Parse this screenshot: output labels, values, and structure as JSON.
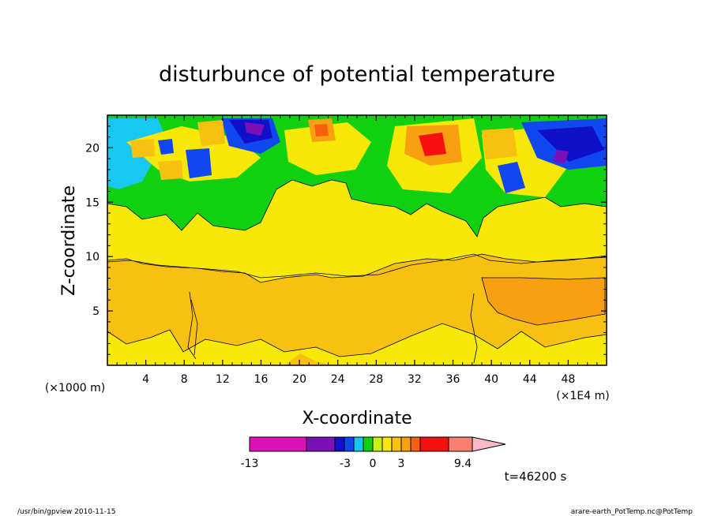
{
  "chart_data": {
    "type": "heatmap",
    "title": "disturbunce of potential temperature",
    "xlabel": "X-coordinate",
    "ylabel": "Z-coordinate",
    "x_units_left": "(×1000 m)",
    "x_units_right": "(×1E4 m)",
    "xlim": [
      0,
      52
    ],
    "ylim": [
      0,
      23
    ],
    "xticks": [
      "4",
      "8",
      "12",
      "16",
      "20",
      "24",
      "28",
      "32",
      "36",
      "40",
      "44",
      "48"
    ],
    "yticks": [
      "5",
      "10",
      "15",
      "20"
    ],
    "colorbar": {
      "tick_labels": [
        "-13",
        "-3",
        "0",
        "3",
        "9.4"
      ],
      "colors": [
        "#dd10b8",
        "#7a10b8",
        "#1010c8",
        "#1048f0",
        "#18c8f0",
        "#10d010",
        "#c8f010",
        "#f8e808",
        "#f8c010",
        "#f8a010",
        "#f86010",
        "#f81010",
        "#f88070",
        "#f8b8c8"
      ]
    },
    "time_label": "t=46200 s"
  },
  "footer": {
    "left": "/usr/bin/gpview  2010-11-15",
    "right": "arare-earth_PotTemp.nc@PotTemp"
  }
}
